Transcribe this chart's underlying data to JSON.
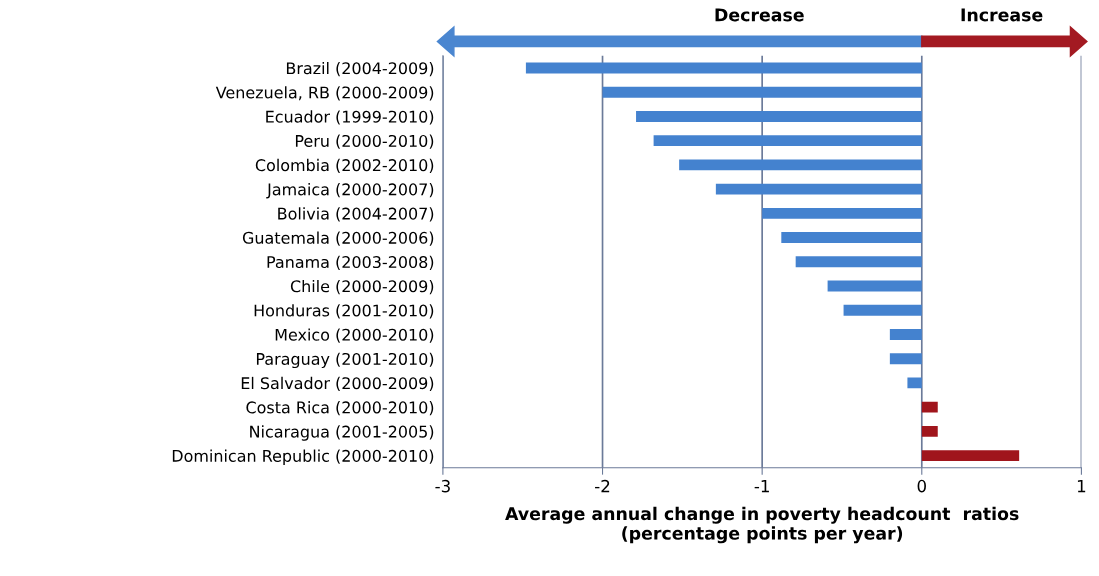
{
  "chart_data": {
    "type": "bar",
    "orientation": "horizontal",
    "categories": [
      "Brazil (2004-2009)",
      "Venezuela, RB (2000-2009)",
      "Ecuador (1999-2010)",
      "Peru (2000-2010)",
      "Colombia (2002-2010)",
      "Jamaica (2000-2007)",
      "Bolivia (2004-2007)",
      "Guatemala (2000-2006)",
      "Panama (2003-2008)",
      "Chile (2000-2009)",
      "Honduras (2001-2010)",
      "Mexico (2000-2010)",
      "Paraguay (2001-2010)",
      "El Salvador (2000-2009)",
      "Costa Rica (2000-2010)",
      "Nicaragua (2001-2005)",
      "Dominican Republic (2000-2010)"
    ],
    "values": [
      -2.48,
      -2.0,
      -1.79,
      -1.68,
      -1.52,
      -1.29,
      -1.0,
      -0.88,
      -0.79,
      -0.59,
      -0.49,
      -0.2,
      -0.2,
      -0.09,
      0.1,
      0.1,
      0.61
    ],
    "colors": [
      "#4482cf",
      "#4482cf",
      "#4482cf",
      "#4482cf",
      "#4482cf",
      "#4482cf",
      "#4482cf",
      "#4482cf",
      "#4482cf",
      "#4482cf",
      "#4482cf",
      "#4482cf",
      "#4482cf",
      "#4482cf",
      "#a0151c",
      "#a0151c",
      "#a0151c"
    ],
    "xlim": [
      -3,
      1
    ],
    "xticks": [
      -3,
      -2,
      -1,
      0,
      1
    ],
    "grid": "x",
    "xlabel": "Average annual change in poverty headcount  ratios\n(percentage points per year)",
    "annotations": [
      "Decrease",
      "Increase"
    ]
  }
}
